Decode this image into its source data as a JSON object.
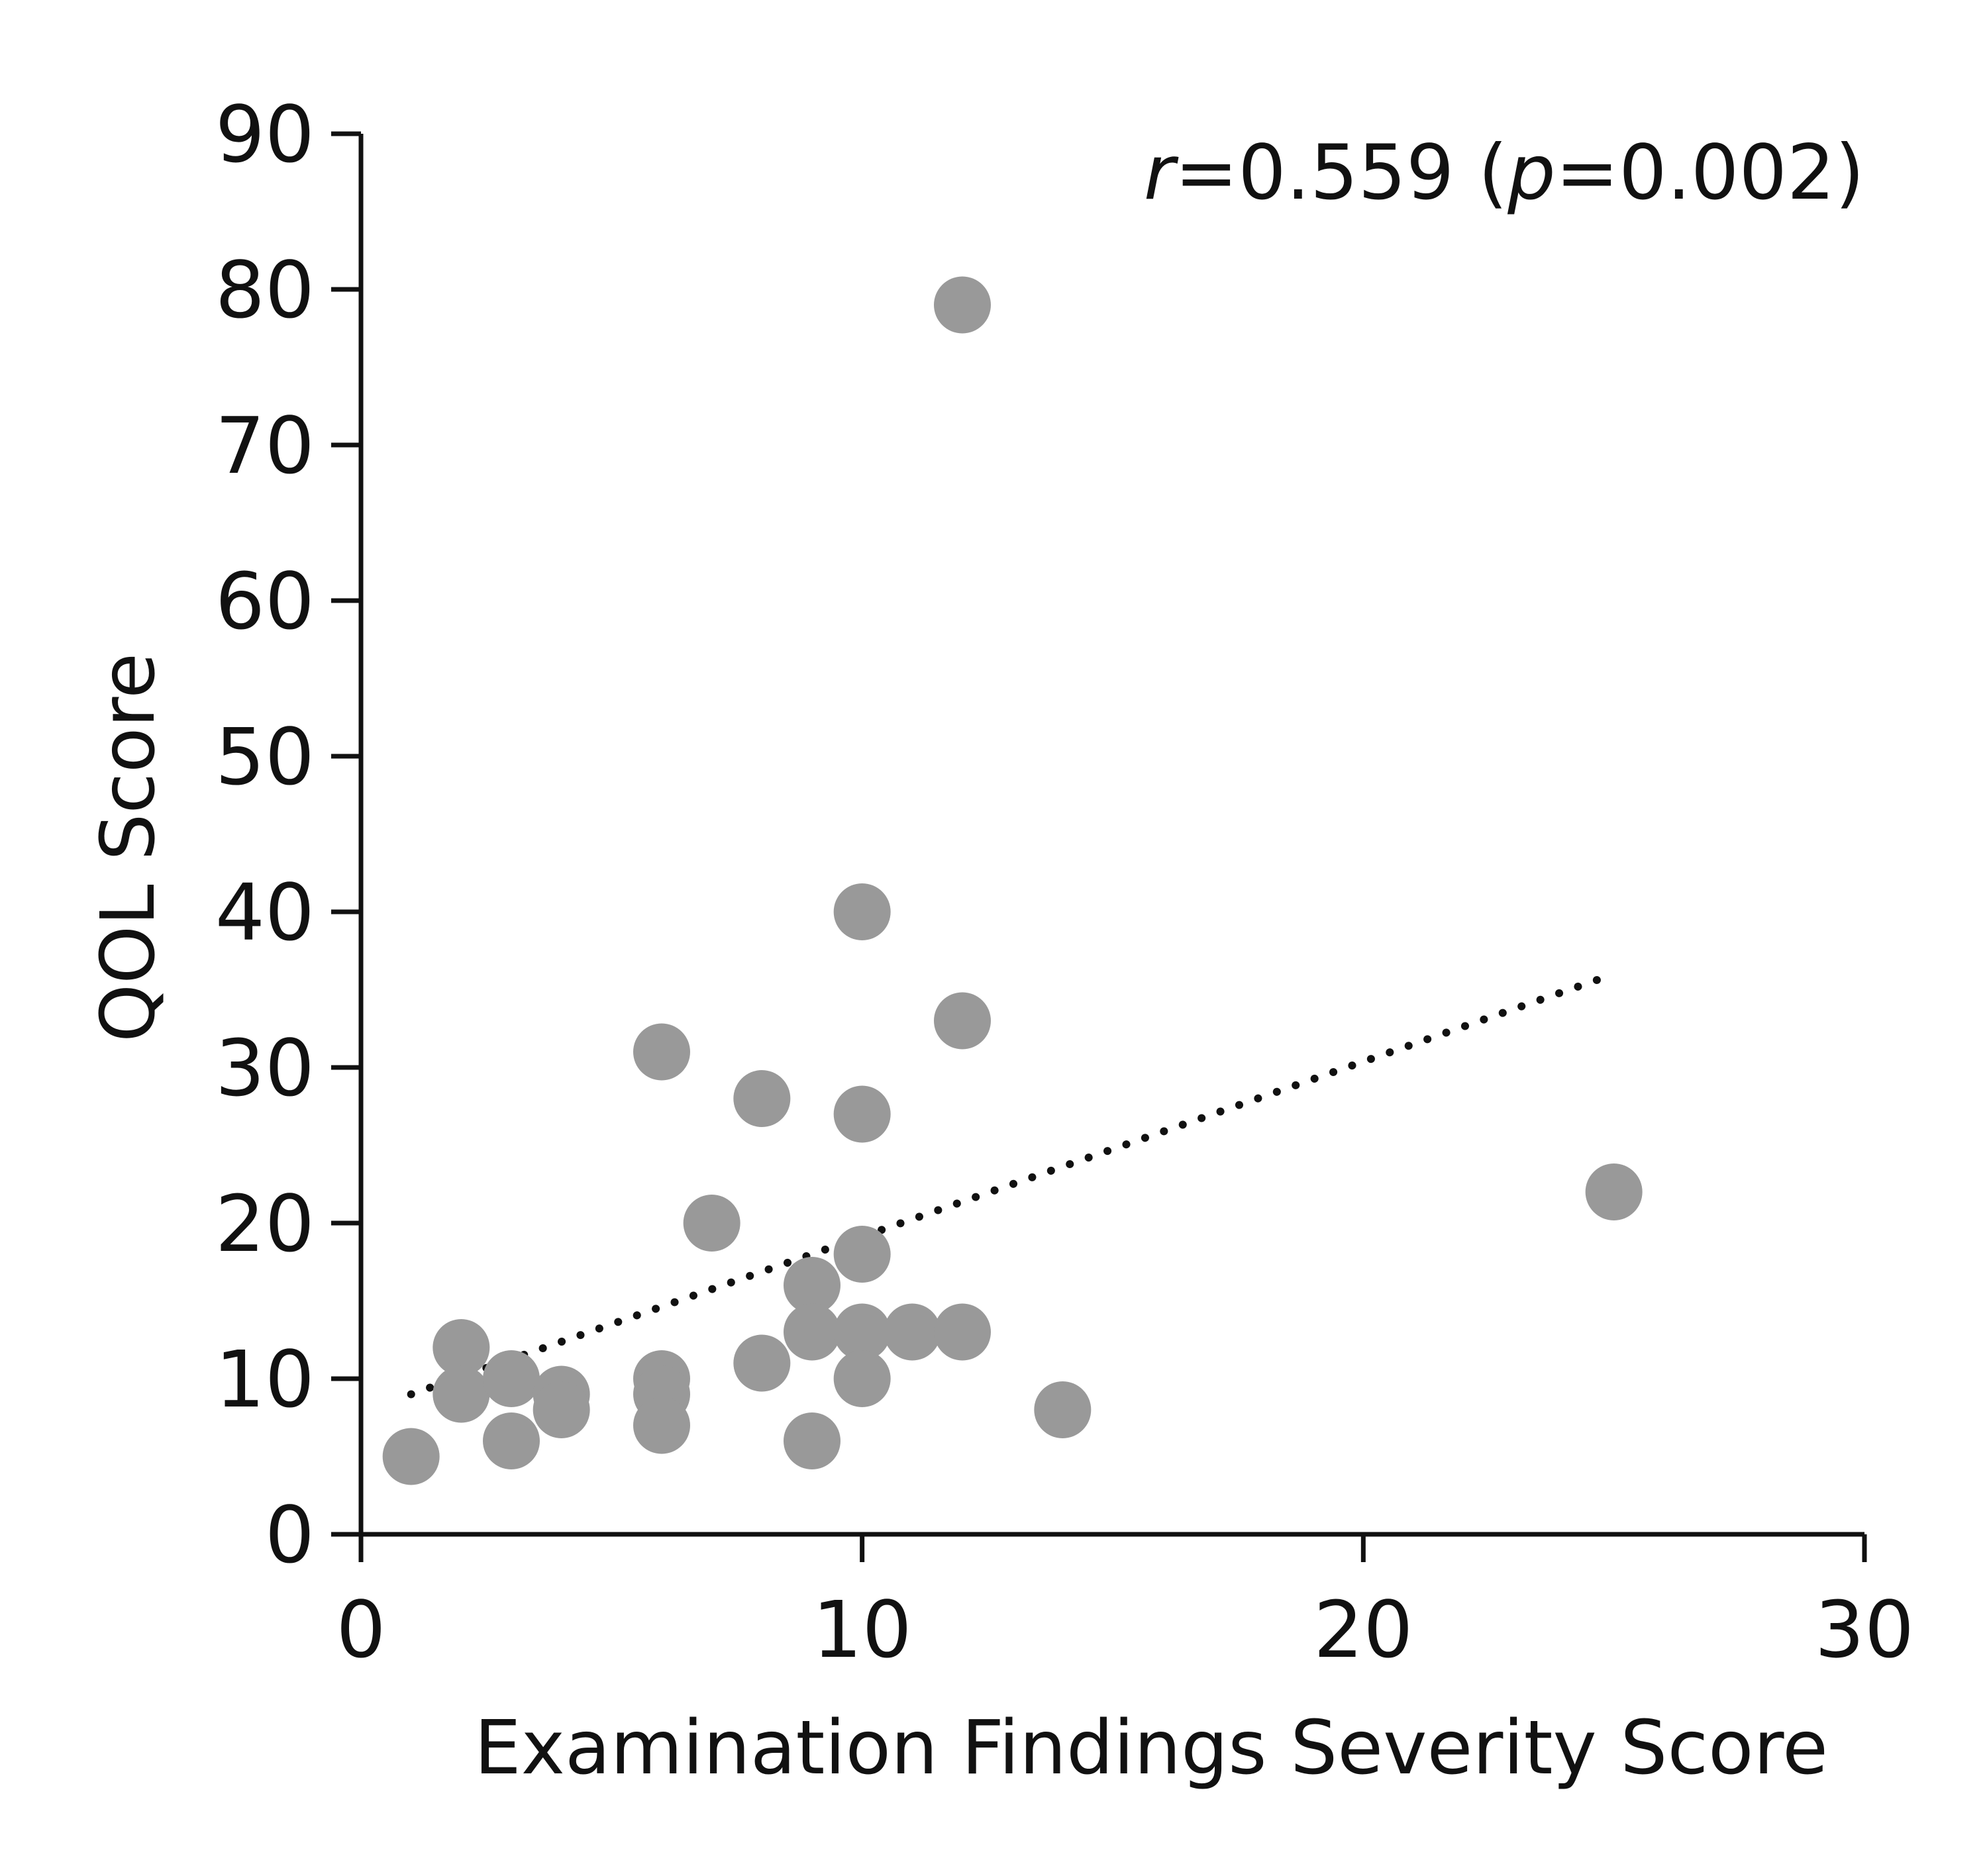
{
  "chart_data": {
    "type": "scatter",
    "xlabel": "Examination Findings Severity Score",
    "ylabel": "QOL Score",
    "xlim": [
      0,
      30
    ],
    "ylim": [
      0,
      90
    ],
    "xticks": [
      "0",
      "10",
      "20",
      "30"
    ],
    "yticks": [
      "0",
      "10",
      "20",
      "30",
      "40",
      "50",
      "60",
      "70",
      "80",
      "90"
    ],
    "grid": false,
    "legend": "none",
    "annotation": {
      "r_symbol": "r",
      "r_text": "=0.559 (",
      "p_symbol": "p",
      "p_text": "=0.002)"
    },
    "point_color": "#999999",
    "trend_color": "#111111",
    "points": [
      {
        "x": 1,
        "y": 5
      },
      {
        "x": 2,
        "y": 12
      },
      {
        "x": 2,
        "y": 9
      },
      {
        "x": 3,
        "y": 10
      },
      {
        "x": 3,
        "y": 6
      },
      {
        "x": 4,
        "y": 9
      },
      {
        "x": 4,
        "y": 8
      },
      {
        "x": 6,
        "y": 31
      },
      {
        "x": 6,
        "y": 10
      },
      {
        "x": 6,
        "y": 9
      },
      {
        "x": 6,
        "y": 7
      },
      {
        "x": 7,
        "y": 20
      },
      {
        "x": 8,
        "y": 28
      },
      {
        "x": 8,
        "y": 11
      },
      {
        "x": 9,
        "y": 16
      },
      {
        "x": 9,
        "y": 13
      },
      {
        "x": 9,
        "y": 6
      },
      {
        "x": 10,
        "y": 40
      },
      {
        "x": 10,
        "y": 27
      },
      {
        "x": 10,
        "y": 18
      },
      {
        "x": 10,
        "y": 13
      },
      {
        "x": 10,
        "y": 10
      },
      {
        "x": 11,
        "y": 13
      },
      {
        "x": 12,
        "y": 79
      },
      {
        "x": 12,
        "y": 33
      },
      {
        "x": 12,
        "y": 13
      },
      {
        "x": 14,
        "y": 8
      },
      {
        "x": 25,
        "y": 22
      }
    ],
    "trendline": {
      "style": "dotted",
      "x": [
        1,
        25
      ],
      "y": [
        9,
        36
      ]
    }
  }
}
